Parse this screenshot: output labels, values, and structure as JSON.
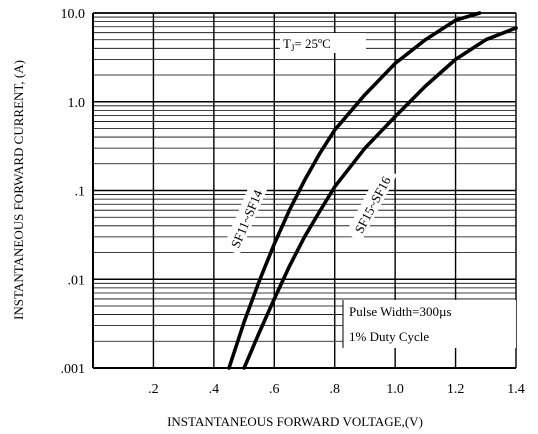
{
  "chart_data": {
    "type": "line",
    "title": "",
    "xlabel": "INSTANTANEOUS FORWARD VOLTAGE,(V)",
    "ylabel": "INSTANTANEOUS FORWARD CURRENT, (A)",
    "x_scale": "linear",
    "y_scale": "log",
    "xlim": [
      0.0,
      1.4
    ],
    "ylim": [
      0.001,
      10.0
    ],
    "x_ticks": [
      {
        "value": 0.2,
        "label": ".2"
      },
      {
        "value": 0.4,
        "label": ".4"
      },
      {
        "value": 0.6,
        "label": ".6"
      },
      {
        "value": 0.8,
        "label": ".8"
      },
      {
        "value": 1.0,
        "label": "1.0"
      },
      {
        "value": 1.2,
        "label": "1.2"
      },
      {
        "value": 1.4,
        "label": "1.4"
      }
    ],
    "y_ticks": [
      {
        "value": 10.0,
        "label": "10.0"
      },
      {
        "value": 1.0,
        "label": "1.0"
      },
      {
        "value": 0.1,
        "label": ".1"
      },
      {
        "value": 0.01,
        "label": ".01"
      },
      {
        "value": 0.001,
        "label": ".001"
      }
    ],
    "grid": true,
    "series": [
      {
        "name": "SF11~SF14",
        "x": [
          0.45,
          0.5,
          0.55,
          0.6,
          0.65,
          0.7,
          0.75,
          0.8,
          0.9,
          1.0,
          1.1,
          1.2,
          1.28
        ],
        "y": [
          0.001,
          0.0033,
          0.0095,
          0.025,
          0.06,
          0.13,
          0.26,
          0.48,
          1.2,
          2.7,
          5.0,
          8.3,
          10.0
        ]
      },
      {
        "name": "SF15~SF16",
        "x": [
          0.5,
          0.55,
          0.6,
          0.65,
          0.7,
          0.75,
          0.8,
          0.9,
          1.0,
          1.1,
          1.2,
          1.3,
          1.4
        ],
        "y": [
          0.001,
          0.0025,
          0.006,
          0.014,
          0.03,
          0.058,
          0.11,
          0.3,
          0.68,
          1.5,
          3.0,
          5.0,
          6.8
        ]
      }
    ],
    "annotations": {
      "temperature": "T",
      "temperature_sub": "J",
      "temperature_rest": "= 25ºC",
      "pulse_width": "Pulse Width=300µs",
      "duty_cycle": "1% Duty Cycle"
    }
  }
}
